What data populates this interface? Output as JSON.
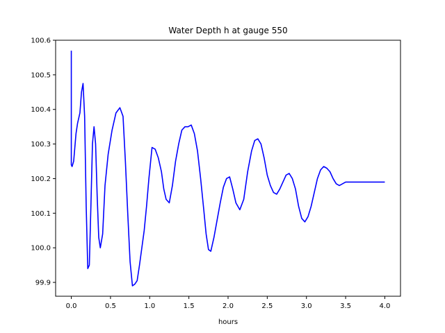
{
  "chart_data": {
    "type": "line",
    "title": "Water Depth h at gauge 550",
    "xlabel": "hours",
    "ylabel": "",
    "xlim": [
      -0.2,
      4.2
    ],
    "ylim": [
      99.86,
      100.6
    ],
    "xticks": [
      0.0,
      0.5,
      1.0,
      1.5,
      2.0,
      2.5,
      3.0,
      3.5,
      4.0
    ],
    "xtick_labels": [
      "0.0",
      "0.5",
      "1.0",
      "1.5",
      "2.0",
      "2.5",
      "3.0",
      "3.5",
      "4.0"
    ],
    "yticks": [
      99.9,
      100.0,
      100.1,
      100.2,
      100.3,
      100.4,
      100.5,
      100.6
    ],
    "ytick_labels": [
      "99.9",
      "100.0",
      "100.1",
      "100.2",
      "100.3",
      "100.4",
      "100.5",
      "100.6"
    ],
    "grid": false,
    "series": [
      {
        "name": "",
        "color": "#0000ff",
        "x": [
          0.0,
          0.0,
          0.01,
          0.03,
          0.06,
          0.08,
          0.11,
          0.13,
          0.15,
          0.17,
          0.19,
          0.21,
          0.23,
          0.25,
          0.27,
          0.29,
          0.31,
          0.33,
          0.35,
          0.37,
          0.4,
          0.43,
          0.47,
          0.52,
          0.57,
          0.62,
          0.66,
          0.69,
          0.72,
          0.75,
          0.78,
          0.81,
          0.84,
          0.87,
          0.9,
          0.93,
          0.96,
          0.99,
          1.03,
          1.07,
          1.11,
          1.15,
          1.18,
          1.21,
          1.25,
          1.29,
          1.33,
          1.37,
          1.41,
          1.45,
          1.49,
          1.53,
          1.57,
          1.61,
          1.65,
          1.69,
          1.72,
          1.75,
          1.78,
          1.82,
          1.86,
          1.9,
          1.94,
          1.98,
          2.02,
          2.06,
          2.1,
          2.15,
          2.2,
          2.25,
          2.3,
          2.34,
          2.38,
          2.42,
          2.46,
          2.5,
          2.54,
          2.58,
          2.62,
          2.66,
          2.7,
          2.74,
          2.78,
          2.82,
          2.86,
          2.9,
          2.94,
          2.98,
          3.02,
          3.06,
          3.1,
          3.14,
          3.18,
          3.22,
          3.26,
          3.3,
          3.34,
          3.38,
          3.42,
          3.46,
          3.5,
          3.54,
          3.58,
          3.62,
          3.66,
          3.7,
          3.74,
          3.78,
          3.82,
          3.86,
          3.9,
          3.94,
          3.98,
          4.0
        ],
        "y": [
          100.57,
          100.24,
          100.235,
          100.25,
          100.33,
          100.36,
          100.39,
          100.45,
          100.475,
          100.38,
          100.12,
          99.94,
          99.95,
          100.12,
          100.3,
          100.35,
          100.3,
          100.15,
          100.03,
          100.0,
          100.04,
          100.18,
          100.27,
          100.34,
          100.39,
          100.405,
          100.38,
          100.25,
          100.1,
          99.96,
          99.89,
          99.895,
          99.905,
          99.95,
          100.0,
          100.05,
          100.12,
          100.2,
          100.29,
          100.285,
          100.26,
          100.22,
          100.17,
          100.14,
          100.13,
          100.18,
          100.25,
          100.3,
          100.34,
          100.35,
          100.35,
          100.355,
          100.33,
          100.28,
          100.2,
          100.11,
          100.04,
          99.995,
          99.99,
          100.03,
          100.08,
          100.13,
          100.175,
          100.2,
          100.205,
          100.17,
          100.13,
          100.11,
          100.14,
          100.22,
          100.28,
          100.31,
          100.315,
          100.3,
          100.26,
          100.21,
          100.18,
          100.16,
          100.155,
          100.17,
          100.19,
          100.21,
          100.215,
          100.2,
          100.17,
          100.12,
          100.085,
          100.075,
          100.09,
          100.12,
          100.16,
          100.2,
          100.225,
          100.235,
          100.23,
          100.22,
          100.2,
          100.185,
          100.18,
          100.185,
          100.19,
          100.19,
          100.19,
          100.19,
          100.19,
          100.19,
          100.19,
          100.19,
          100.19,
          100.19,
          100.19,
          100.19,
          100.19,
          100.19
        ]
      }
    ]
  }
}
